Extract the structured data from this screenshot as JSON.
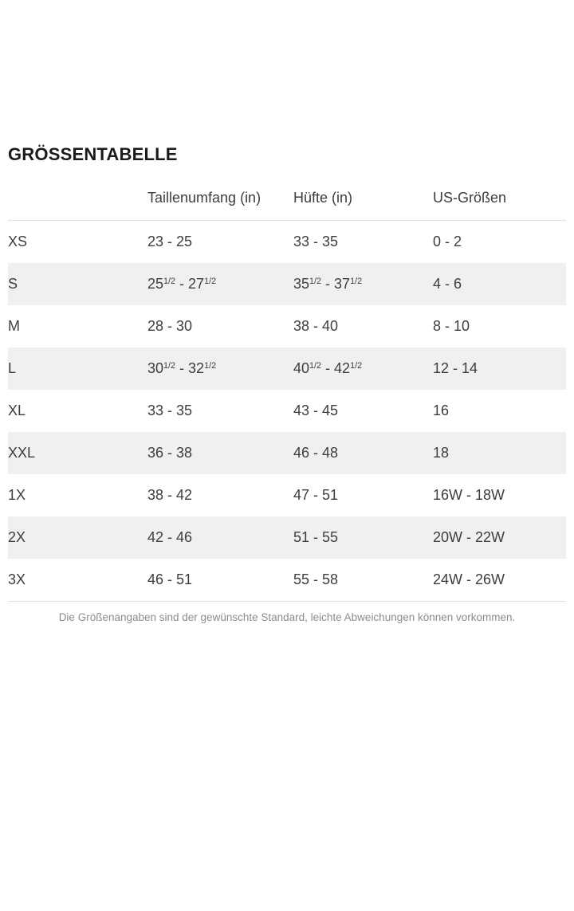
{
  "page": {
    "title": "GRÖSSENTABELLE"
  },
  "table": {
    "columns": [
      "",
      "Taillenumfang (in)",
      "Hüfte (in)",
      "US-Größen"
    ],
    "rows": [
      {
        "size": "XS",
        "waist": "23 - 25",
        "hip": "33 - 35",
        "us": "0 - 2"
      },
      {
        "size": "S",
        "waist": "25^1/2^ - 27^1/2^",
        "hip": "35^1/2^ - 37^1/2^",
        "us": "4 - 6"
      },
      {
        "size": "M",
        "waist": "28 - 30",
        "hip": "38 - 40",
        "us": "8 - 10"
      },
      {
        "size": "L",
        "waist": "30^1/2^ - 32^1/2^",
        "hip": "40^1/2^ - 42^1/2^",
        "us": "12 - 14"
      },
      {
        "size": "XL",
        "waist": "33 - 35",
        "hip": "43 - 45",
        "us": "16"
      },
      {
        "size": "XXL",
        "waist": "36 - 38",
        "hip": "46 - 48",
        "us": "18"
      },
      {
        "size": "1X",
        "waist": "38 - 42",
        "hip": "47 - 51",
        "us": "16W - 18W"
      },
      {
        "size": "2X",
        "waist": "42 - 46",
        "hip": "51 - 55",
        "us": "20W - 22W"
      },
      {
        "size": "3X",
        "waist": "46 - 51",
        "hip": "55 - 58",
        "us": "24W - 26W"
      }
    ]
  },
  "footer": {
    "note": "Die Größenangaben sind der gewünschte Standard, leichte Abweichungen können vorkommen."
  },
  "colors": {
    "stripe": "#f0f0f0",
    "border": "#e2e2e2",
    "text": "#3d3d3d",
    "muted_text": "#8c8c8c",
    "title_text": "#1b1b1b"
  }
}
